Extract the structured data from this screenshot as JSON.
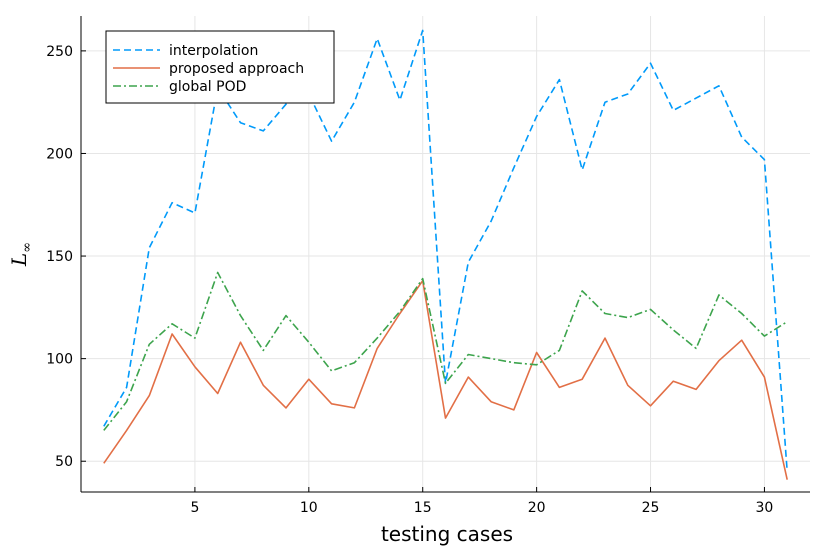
{
  "chart_data": {
    "type": "line",
    "title": "",
    "xlabel": "testing cases",
    "ylabel_main": "L",
    "ylabel_sub": "∞",
    "xlim": [
      0,
      32
    ],
    "ylim": [
      35,
      267
    ],
    "xticks": [
      5,
      10,
      15,
      20,
      25,
      30
    ],
    "yticks": [
      50,
      100,
      150,
      200,
      250
    ],
    "grid": true,
    "legend_position": "top-left",
    "x": [
      1,
      2,
      3,
      4,
      5,
      6,
      7,
      8,
      9,
      10,
      11,
      12,
      13,
      14,
      15,
      16,
      17,
      18,
      19,
      20,
      21,
      22,
      23,
      24,
      25,
      26,
      27,
      28,
      29,
      30,
      31
    ],
    "series": [
      {
        "name": "interpolation",
        "color": "#009AFA",
        "dash": "7,4",
        "values": [
          67,
          86,
          154,
          176,
          171,
          232,
          215,
          211,
          224,
          229,
          206,
          225,
          256,
          226,
          260,
          88,
          147,
          167,
          193,
          218,
          236,
          192,
          225,
          229,
          244,
          221,
          227,
          233,
          208,
          197,
          45
        ]
      },
      {
        "name": "proposed approach",
        "color": "#E26F46",
        "dash": "",
        "values": [
          49,
          65,
          82,
          112,
          96,
          83,
          108,
          87,
          76,
          90,
          78,
          76,
          105,
          122,
          138,
          71,
          91,
          79,
          75,
          103,
          86,
          90,
          110,
          87,
          77,
          89,
          85,
          99,
          109,
          91,
          41
        ]
      },
      {
        "name": "global POD",
        "color": "#3DA44D",
        "dash": "8,3,2,3",
        "values": [
          65,
          79,
          107,
          117,
          110,
          142,
          121,
          104,
          121,
          108,
          94,
          98,
          110,
          123,
          139,
          88,
          102,
          100,
          98,
          97,
          104,
          133,
          122,
          120,
          124,
          114,
          105,
          131,
          122,
          111,
          118
        ]
      }
    ]
  }
}
